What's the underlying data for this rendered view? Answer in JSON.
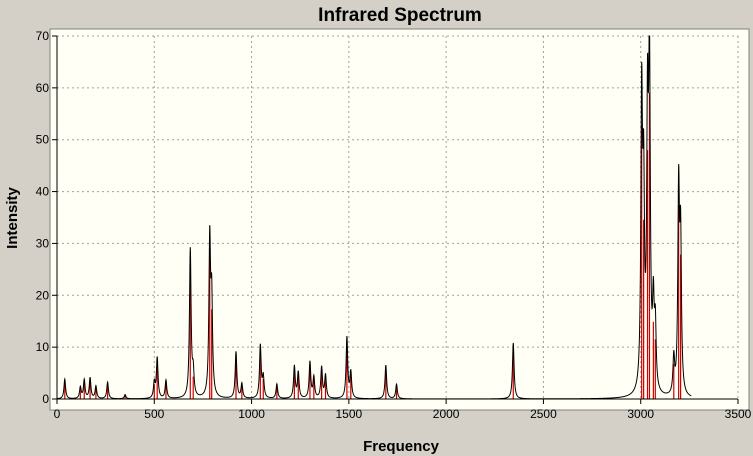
{
  "chart_data": {
    "type": "line",
    "title": "Infrared Spectrum",
    "xlabel": "Frequency",
    "ylabel": "Intensity",
    "xlim": [
      0,
      3500
    ],
    "ylim": [
      0,
      70
    ],
    "x_ticks": [
      0,
      500,
      1000,
      1500,
      2000,
      2500,
      3000,
      3500
    ],
    "y_ticks": [
      0,
      10,
      20,
      30,
      40,
      50,
      60,
      70
    ],
    "grid": true,
    "colors": {
      "plot_background": "#fffff5",
      "frame": "#d4d0c8",
      "spectrum_line": "#000000",
      "stick_lines": "#cc0000",
      "grid": "#a0a0a0"
    },
    "peaks": [
      {
        "x": 40,
        "y": 3.8
      },
      {
        "x": 120,
        "y": 2.2
      },
      {
        "x": 140,
        "y": 3.6
      },
      {
        "x": 170,
        "y": 4.0
      },
      {
        "x": 200,
        "y": 2.4
      },
      {
        "x": 260,
        "y": 3.2
      },
      {
        "x": 350,
        "y": 0.8
      },
      {
        "x": 500,
        "y": 3.0
      },
      {
        "x": 515,
        "y": 7.8
      },
      {
        "x": 560,
        "y": 3.5
      },
      {
        "x": 685,
        "y": 28.7
      },
      {
        "x": 700,
        "y": 4.5
      },
      {
        "x": 785,
        "y": 29.8
      },
      {
        "x": 795,
        "y": 18.0
      },
      {
        "x": 920,
        "y": 9.0
      },
      {
        "x": 950,
        "y": 2.8
      },
      {
        "x": 1045,
        "y": 10.2
      },
      {
        "x": 1060,
        "y": 4.0
      },
      {
        "x": 1130,
        "y": 2.8
      },
      {
        "x": 1220,
        "y": 6.2
      },
      {
        "x": 1240,
        "y": 5.0
      },
      {
        "x": 1300,
        "y": 7.0
      },
      {
        "x": 1320,
        "y": 4.0
      },
      {
        "x": 1360,
        "y": 6.0
      },
      {
        "x": 1380,
        "y": 4.5
      },
      {
        "x": 1490,
        "y": 11.8
      },
      {
        "x": 1510,
        "y": 5.0
      },
      {
        "x": 1690,
        "y": 6.5
      },
      {
        "x": 1745,
        "y": 2.8
      },
      {
        "x": 2345,
        "y": 10.8
      },
      {
        "x": 3005,
        "y": 55.3
      },
      {
        "x": 3015,
        "y": 36.0
      },
      {
        "x": 3035,
        "y": 50.0
      },
      {
        "x": 3045,
        "y": 61.5
      },
      {
        "x": 3065,
        "y": 15.5
      },
      {
        "x": 3075,
        "y": 12.0
      },
      {
        "x": 3170,
        "y": 7.0
      },
      {
        "x": 3195,
        "y": 39.0
      },
      {
        "x": 3205,
        "y": 29.0
      }
    ]
  }
}
